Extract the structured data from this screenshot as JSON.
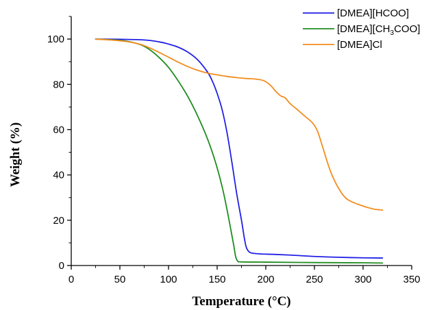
{
  "chart_data": {
    "type": "line",
    "xlabel": "Temperature (°C)",
    "ylabel": "Weight (%)",
    "xlim": [
      0,
      350
    ],
    "ylim": [
      0,
      110
    ],
    "x_ticks": [
      0,
      50,
      100,
      150,
      200,
      250,
      300,
      350
    ],
    "y_ticks": [
      0,
      20,
      40,
      60,
      80,
      100
    ],
    "grid": false,
    "legend_position": "top-right",
    "series": [
      {
        "name": "[DMEA][HCOO]",
        "name_parts": [
          "[DMEA][HCOO]",
          "",
          ""
        ],
        "color": "#1f1fe6",
        "points": [
          [
            25,
            100
          ],
          [
            50,
            99.9
          ],
          [
            75,
            99.6
          ],
          [
            90,
            98.8
          ],
          [
            100,
            97.8
          ],
          [
            110,
            96.4
          ],
          [
            120,
            94.2
          ],
          [
            130,
            90.8
          ],
          [
            140,
            85.5
          ],
          [
            145,
            81.5
          ],
          [
            150,
            76
          ],
          [
            155,
            69
          ],
          [
            160,
            59
          ],
          [
            165,
            46
          ],
          [
            170,
            32
          ],
          [
            175,
            20
          ],
          [
            178,
            12
          ],
          [
            180,
            8
          ],
          [
            183,
            6
          ],
          [
            187,
            5.4
          ],
          [
            195,
            5.1
          ],
          [
            210,
            4.9
          ],
          [
            230,
            4.5
          ],
          [
            250,
            4
          ],
          [
            270,
            3.7
          ],
          [
            300,
            3.4
          ],
          [
            320,
            3.3
          ]
        ]
      },
      {
        "name": "[DMEA][CH3COO]",
        "name_parts": [
          "[DMEA][CH",
          "3",
          "COO]"
        ],
        "color": "#1e8c1e",
        "points": [
          [
            25,
            100
          ],
          [
            40,
            99.7
          ],
          [
            55,
            99.2
          ],
          [
            70,
            97.7
          ],
          [
            80,
            95.5
          ],
          [
            90,
            92
          ],
          [
            100,
            87.5
          ],
          [
            110,
            81.5
          ],
          [
            120,
            74.5
          ],
          [
            130,
            66
          ],
          [
            140,
            56
          ],
          [
            148,
            46
          ],
          [
            155,
            35
          ],
          [
            160,
            25
          ],
          [
            164,
            16
          ],
          [
            167,
            9
          ],
          [
            169,
            4
          ],
          [
            171,
            2
          ],
          [
            175,
            1.6
          ],
          [
            200,
            1.5
          ],
          [
            250,
            1.3
          ],
          [
            300,
            1.2
          ],
          [
            320,
            1.1
          ]
        ]
      },
      {
        "name": "[DMEA]Cl",
        "name_parts": [
          "[DMEA]Cl",
          "",
          ""
        ],
        "color": "#f28c1e",
        "points": [
          [
            25,
            100
          ],
          [
            40,
            99.6
          ],
          [
            55,
            99
          ],
          [
            70,
            97.8
          ],
          [
            80,
            96.2
          ],
          [
            90,
            94.2
          ],
          [
            100,
            92
          ],
          [
            110,
            89.8
          ],
          [
            120,
            87.8
          ],
          [
            130,
            86.2
          ],
          [
            140,
            85
          ],
          [
            150,
            84.2
          ],
          [
            160,
            83.5
          ],
          [
            170,
            83
          ],
          [
            180,
            82.6
          ],
          [
            190,
            82.3
          ],
          [
            198,
            81.6
          ],
          [
            205,
            79.5
          ],
          [
            210,
            77
          ],
          [
            215,
            75
          ],
          [
            220,
            74
          ],
          [
            225,
            71.5
          ],
          [
            232,
            69
          ],
          [
            240,
            66
          ],
          [
            248,
            63
          ],
          [
            253,
            59.5
          ],
          [
            258,
            53
          ],
          [
            263,
            46
          ],
          [
            268,
            40
          ],
          [
            275,
            34
          ],
          [
            283,
            29.5
          ],
          [
            295,
            27
          ],
          [
            310,
            25
          ],
          [
            320,
            24.5
          ]
        ]
      }
    ]
  }
}
